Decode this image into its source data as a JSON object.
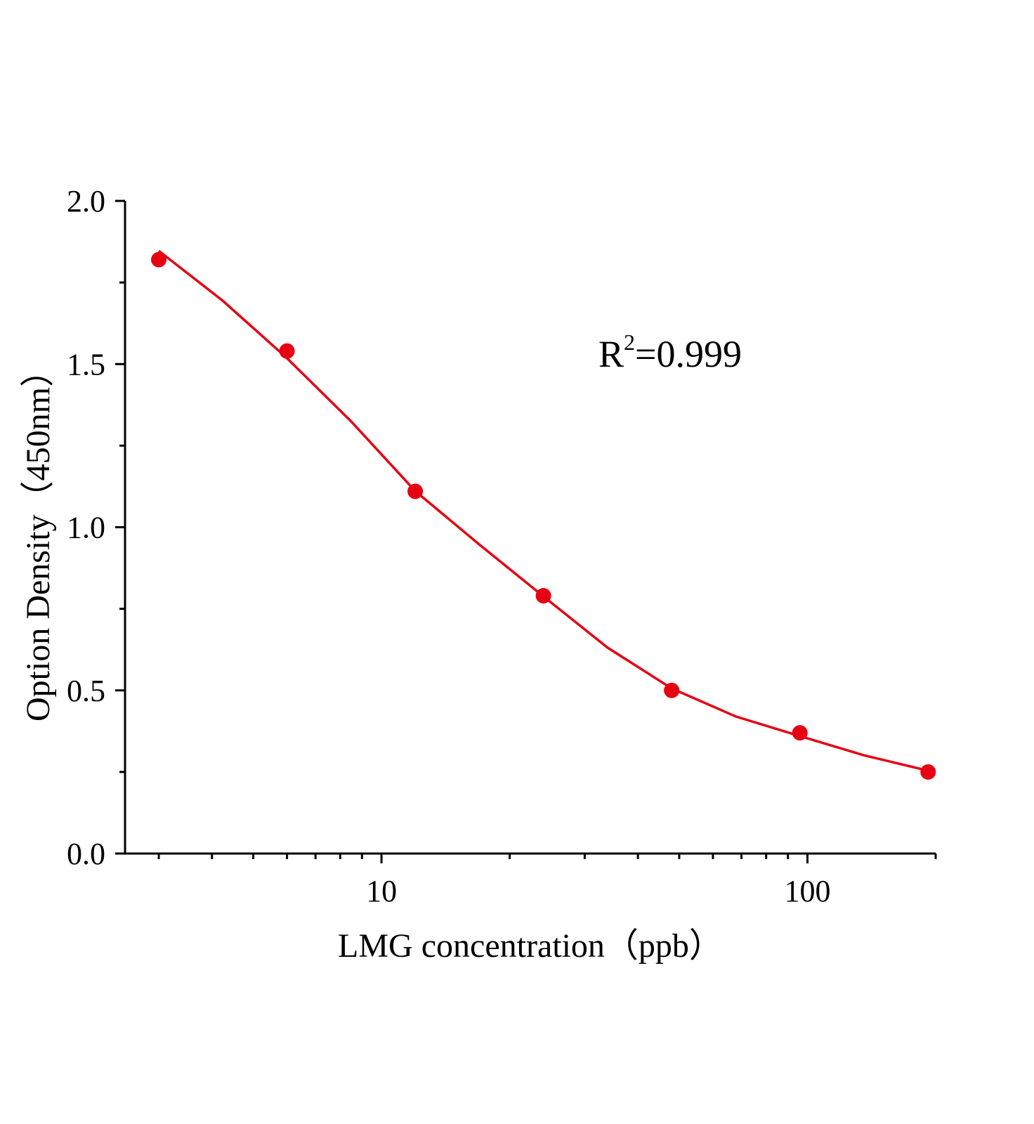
{
  "chart_data": {
    "type": "scatter",
    "xlabel": "LMG  concentration（ppb）",
    "ylabel": "Option Density（450nm）",
    "annotation": [
      "R",
      "2",
      "=0.999"
    ],
    "xscale": "log",
    "xlim": [
      2.5,
      200
    ],
    "xticks": [
      10,
      100
    ],
    "xminorticks": [
      3,
      4,
      5,
      6,
      7,
      8,
      9,
      20,
      30,
      40,
      50,
      60,
      70,
      80,
      90,
      200
    ],
    "ylim": [
      0,
      2
    ],
    "yticks": [
      {
        "value": 0,
        "label": "0.0"
      },
      0.5,
      {
        "value": 1,
        "label": "1.0"
      },
      1.5,
      {
        "value": 2,
        "label": "2.0"
      }
    ],
    "yminorticks": [
      0.25,
      0.75,
      1.25,
      1.75
    ],
    "series": [
      {
        "style": "points",
        "color": "#e60012",
        "x": [
          3,
          6,
          12,
          24,
          48,
          96,
          192
        ],
        "values": [
          1.82,
          1.54,
          1.11,
          0.79,
          0.5,
          0.37,
          0.25
        ]
      },
      {
        "style": "line",
        "color": "#e60012",
        "x": [
          3,
          4.24,
          6,
          8.49,
          12,
          16.97,
          24,
          33.94,
          48,
          67.88,
          96,
          135.76,
          192
        ],
        "values": [
          1.847,
          1.694,
          1.518,
          1.324,
          1.111,
          0.947,
          0.788,
          0.631,
          0.506,
          0.42,
          0.36,
          0.301,
          0.254
        ]
      }
    ]
  }
}
